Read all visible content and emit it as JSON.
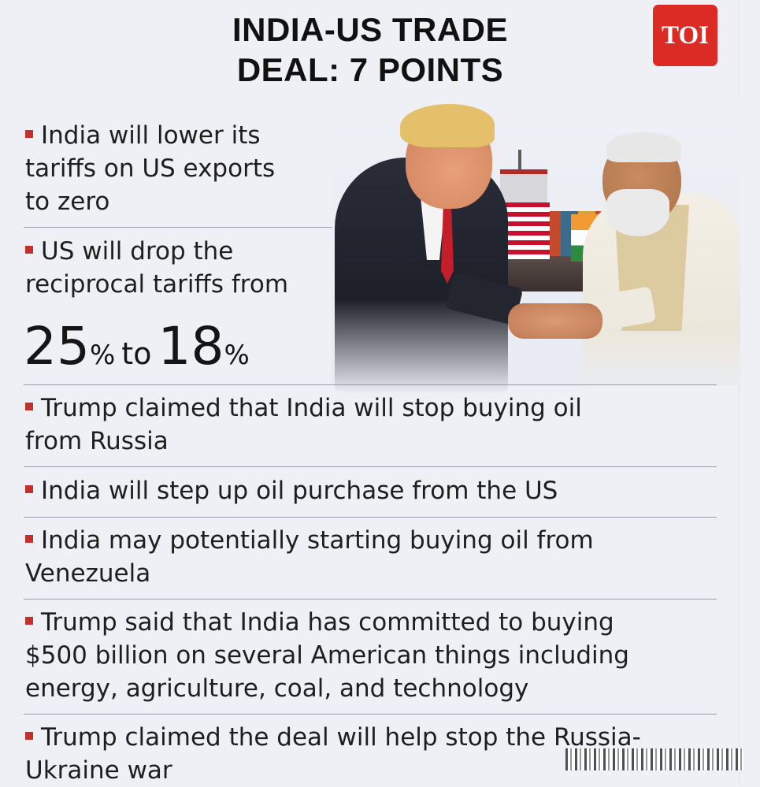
{
  "header": {
    "title_line1": "INDIA-US TRADE",
    "title_line2": "DEAL: 7 POINTS",
    "logo_text": "TOI"
  },
  "points": [
    {
      "lines": [
        "India will lower its",
        "tariffs on US exports",
        "to zero"
      ]
    },
    {
      "lines": [
        "US will drop the",
        "reciprocal tariffs from"
      ]
    },
    {
      "lines": [
        "Trump claimed that India will stop buying oil",
        "from Russia"
      ]
    },
    {
      "lines": [
        "India will step up oil purchase from the US"
      ]
    },
    {
      "lines": [
        "India may potentially starting buying oil from",
        "Venezuela"
      ]
    },
    {
      "lines": [
        "Trump said that India has committed to buying",
        "$500 billion on several American things including",
        "energy, agriculture, coal, and technology"
      ]
    },
    {
      "lines": [
        "Trump claimed the deal will help stop the Russia-",
        "Ukraine war"
      ]
    }
  ],
  "tariff_change": {
    "from_value": "25",
    "from_unit": "%",
    "connector": "to",
    "to_value": "18",
    "to_unit": "%"
  },
  "colors": {
    "accent": "#c0312b",
    "logo_bg": "#dc2a24",
    "background": "#eef0f6"
  }
}
